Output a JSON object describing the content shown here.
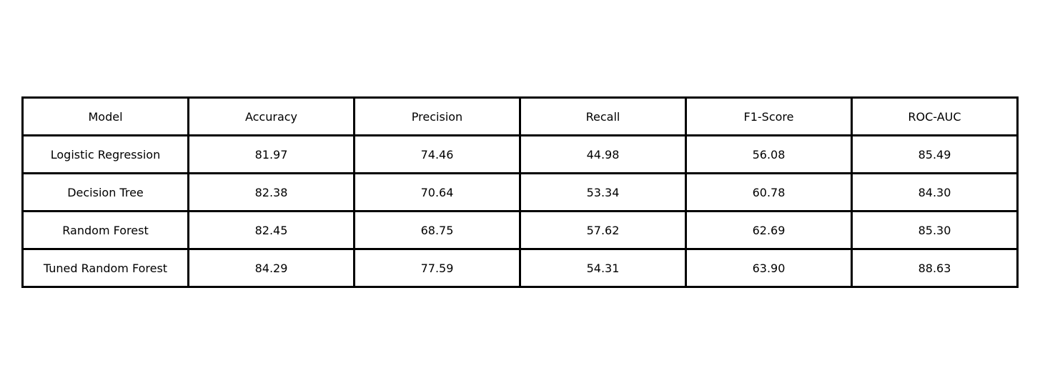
{
  "chart_data": {
    "type": "table",
    "columns": [
      "Model",
      "Accuracy",
      "Precision",
      "Recall",
      "F1-Score",
      "ROC-AUC"
    ],
    "rows": [
      [
        "Logistic Regression",
        "81.97",
        "74.46",
        "44.98",
        "56.08",
        "85.49"
      ],
      [
        "Decision Tree",
        "82.38",
        "70.64",
        "53.34",
        "60.78",
        "84.30"
      ],
      [
        "Random Forest",
        "82.45",
        "68.75",
        "57.62",
        "62.69",
        "85.30"
      ],
      [
        "Tuned Random Forest",
        "84.29",
        "77.59",
        "54.31",
        "63.90",
        "88.63"
      ]
    ]
  }
}
